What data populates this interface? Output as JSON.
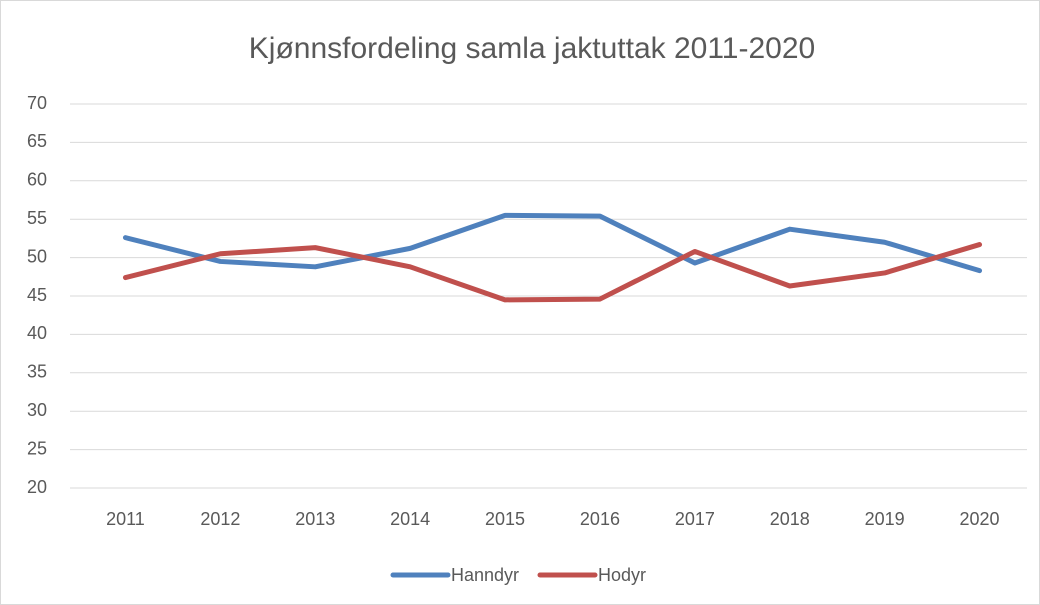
{
  "chart_data": {
    "type": "line",
    "title": "Kjønnsfordeling samla jaktuttak 2011-2020",
    "categories": [
      "2011",
      "2012",
      "2013",
      "2014",
      "2015",
      "2016",
      "2017",
      "2018",
      "2019",
      "2020"
    ],
    "series": [
      {
        "name": "Hanndyr",
        "color": "#4f81bd",
        "values": [
          52.6,
          49.5,
          48.8,
          51.2,
          55.5,
          55.4,
          49.3,
          53.7,
          52.0,
          48.3
        ]
      },
      {
        "name": "Hodyr",
        "color": "#c0504d",
        "values": [
          47.4,
          50.5,
          51.3,
          48.8,
          44.5,
          44.6,
          50.8,
          46.3,
          48.0,
          51.7
        ]
      }
    ],
    "ylim": [
      20,
      70
    ],
    "yticks": [
      20,
      25,
      30,
      35,
      40,
      45,
      50,
      55,
      60,
      65,
      70
    ],
    "grid": true,
    "legend": "bottom"
  }
}
